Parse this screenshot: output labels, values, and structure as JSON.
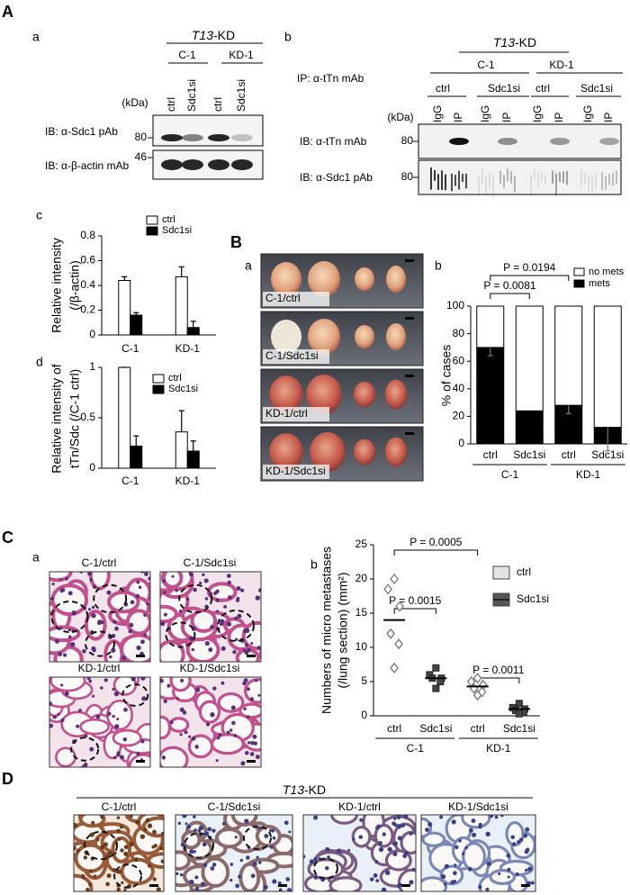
{
  "figure": {
    "A": {
      "label": "A",
      "a": {
        "label": "a",
        "group_gene": "T13",
        "group_suffix": "-KD",
        "clones": [
          "C-1",
          "KD-1"
        ],
        "lanes": [
          "ctrl",
          "Sdc1si",
          "ctrl",
          "Sdc1si"
        ],
        "kda": "(kDa)",
        "blots": [
          {
            "probe": "IB: α-Sdc1 pAb",
            "marker": "80"
          },
          {
            "probe": "IB: α-β-actin mAb",
            "marker": "46"
          }
        ]
      },
      "b": {
        "label": "b",
        "group_gene": "T13",
        "group_suffix": "-KD",
        "ip": "IP: α-tTn mAb",
        "clones": [
          "C-1",
          "KD-1"
        ],
        "conditions": [
          "ctrl",
          "Sdc1si",
          "ctrl",
          "Sdc1si"
        ],
        "lanes": [
          "IgG",
          "IP",
          "IgG",
          "IP",
          "IgG",
          "IP",
          "IgG",
          "IP"
        ],
        "kda": "(kDa)",
        "blots": [
          {
            "probe": "IB: α-tTn mAb",
            "marker": "80"
          },
          {
            "probe": "IB: α-Sdc1 pAb",
            "marker": "80"
          }
        ]
      }
    },
    "B": {
      "label": "B",
      "a": {
        "label": "a",
        "photos": [
          "C-1/ctrl",
          "C-1/Sdc1si",
          "KD-1/ctrl",
          "KD-1/Sdc1si"
        ]
      }
    },
    "C": {
      "label": "C",
      "a": {
        "label": "a",
        "images": [
          "C-1/ctrl",
          "C-1/Sdc1si",
          "KD-1/ctrl",
          "KD-1/Sdc1si"
        ]
      }
    },
    "D": {
      "label": "D",
      "group_gene": "T13",
      "group_suffix": "-KD",
      "images": [
        "C-1/ctrl",
        "C-1/Sdc1si",
        "KD-1/ctrl",
        "KD-1/Sdc1si"
      ]
    }
  },
  "chart_data": [
    {
      "type": "bar",
      "panel": "c",
      "ylabel": [
        "Relative intensity",
        "(/β-actin)"
      ],
      "categories": [
        "C-1",
        "KD-1"
      ],
      "series": [
        {
          "name": "ctrl",
          "color": "#ffffff",
          "values": [
            0.44,
            0.47
          ],
          "errors": [
            0.03,
            0.08
          ]
        },
        {
          "name": "Sdc1si",
          "color": "#000000",
          "values": [
            0.16,
            0.06
          ],
          "errors": [
            0.02,
            0.05
          ]
        }
      ],
      "ylim": [
        0,
        0.8
      ],
      "yticks": [
        0,
        0.2,
        0.4,
        0.6,
        0.8
      ]
    },
    {
      "type": "bar",
      "panel": "d",
      "ylabel": [
        "Relative intensity of",
        "tTn/Sdc (/C-1 ctrl)"
      ],
      "categories": [
        "C-1",
        "KD-1"
      ],
      "series": [
        {
          "name": "ctrl",
          "color": "#ffffff",
          "values": [
            1,
            0.36
          ],
          "errors": [
            0,
            0.21
          ]
        },
        {
          "name": "Sdc1si",
          "color": "#000000",
          "values": [
            0.22,
            0.17
          ],
          "errors": [
            0.1,
            0.1
          ]
        }
      ],
      "ylim": [
        0,
        1
      ],
      "yticks": [
        0,
        0.5,
        1
      ]
    },
    {
      "type": "stacked_bar",
      "panel": "b",
      "ylabel": [
        "% of cases"
      ],
      "categories": [
        "ctrl",
        "Sdc1si",
        "ctrl",
        "Sdc1si"
      ],
      "groups": [
        "C-1",
        "KD-1"
      ],
      "series": [
        {
          "name": "mets",
          "color": "#000000",
          "values": [
            70,
            24,
            28,
            12
          ],
          "errors": [
            6,
            null,
            6,
            17
          ]
        },
        {
          "name": "no mets",
          "color": "#ffffff",
          "values": [
            30,
            76,
            72,
            88
          ]
        }
      ],
      "annotations": [
        "P = 0.0081",
        "P = 0.0194"
      ],
      "ylim": [
        0,
        100
      ],
      "yticks": [
        0,
        20,
        40,
        60,
        80,
        100
      ]
    },
    {
      "type": "strip",
      "panel": "b",
      "ylabel": [
        "Numbers of micro metastases",
        "(/lung section) (mm²)"
      ],
      "categories": [
        "ctrl",
        "Sdc1si",
        "ctrl",
        "Sdc1si"
      ],
      "groups": [
        "C-1",
        "KD-1"
      ],
      "series": [
        {
          "name": "ctrl",
          "color": "#e4e4e4"
        },
        {
          "name": "Sdc1si",
          "color": "#555555"
        }
      ],
      "values": [
        [
          20,
          18.5,
          16,
          12,
          10.5,
          7
        ],
        [
          7,
          6,
          5.5,
          5.5,
          5,
          4
        ],
        [
          5.5,
          5,
          4.5,
          4,
          3.5,
          3
        ],
        [
          1.8,
          1.2,
          1,
          0.8,
          0.5,
          0.3
        ]
      ],
      "means": [
        14,
        5.5,
        4.3,
        1
      ],
      "annotations": [
        "P = 0.0015",
        "P = 0.0005",
        "P = 0.0011"
      ],
      "ylim": [
        0,
        25
      ],
      "yticks": [
        0,
        5,
        10,
        15,
        20,
        25
      ]
    }
  ]
}
